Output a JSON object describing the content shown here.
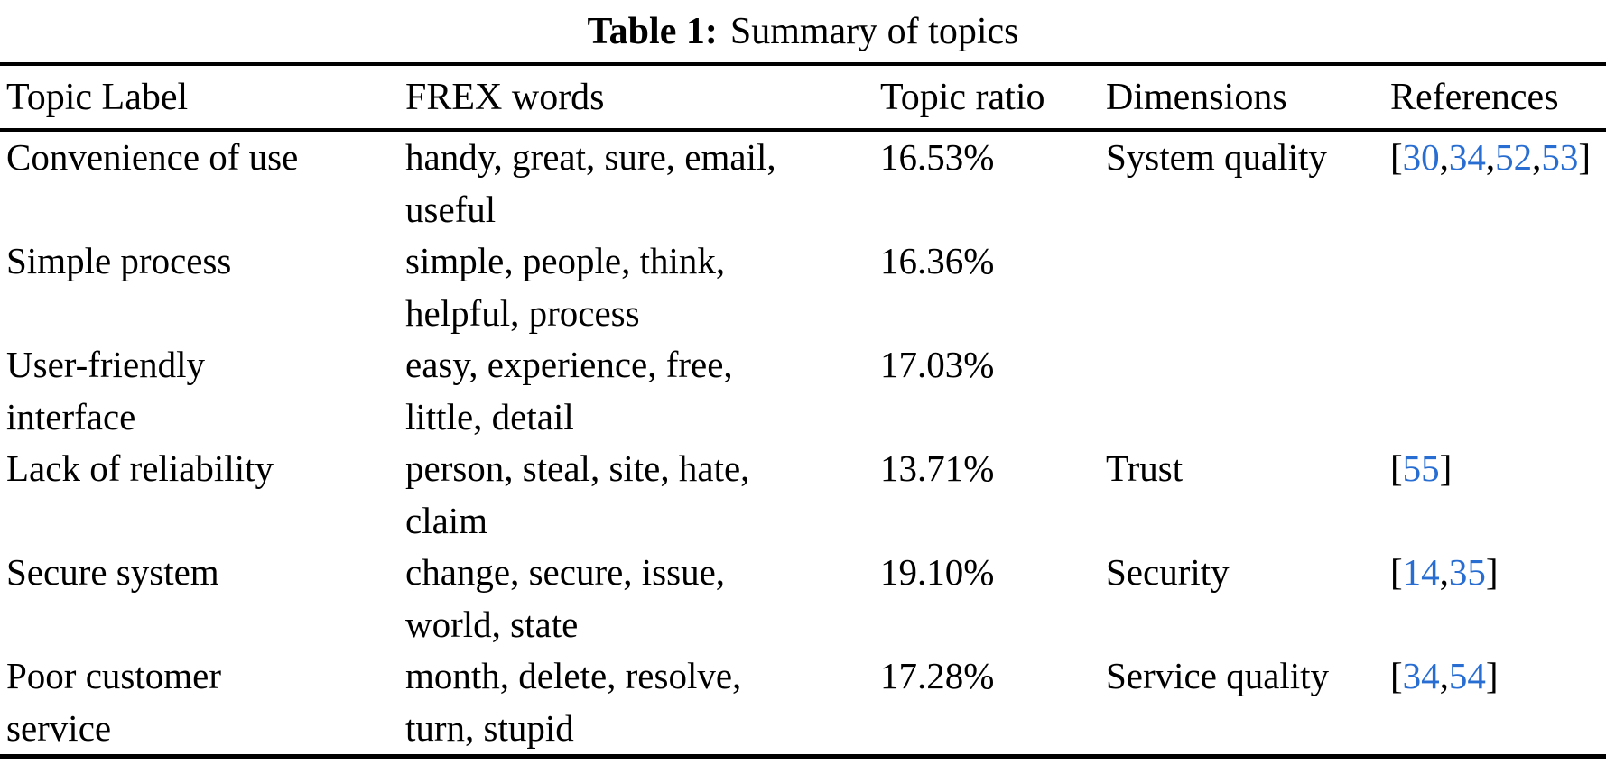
{
  "title": {
    "label": "Table 1:",
    "caption": "Summary of topics"
  },
  "table": {
    "columns": [
      "Topic Label",
      "FREX words",
      "Topic ratio",
      "Dimensions",
      "References"
    ],
    "rows": [
      {
        "topic_label": "Convenience of use",
        "frex_words": "handy, great, sure, email,\nuseful",
        "topic_ratio": "16.53%",
        "dimensions": "System quality",
        "references": [
          30,
          34,
          52,
          53
        ]
      },
      {
        "topic_label": "Simple process",
        "frex_words": "simple, people, think,\nhelpful, process",
        "topic_ratio": "16.36%",
        "dimensions": "",
        "references": []
      },
      {
        "topic_label": "User-friendly\ninterface",
        "frex_words": "easy, experience, free,\nlittle, detail",
        "topic_ratio": "17.03%",
        "dimensions": "",
        "references": []
      },
      {
        "topic_label": "Lack of reliability",
        "frex_words": "person, steal, site, hate,\nclaim",
        "topic_ratio": "13.71%",
        "dimensions": "Trust",
        "references": [
          55
        ]
      },
      {
        "topic_label": "Secure system",
        "frex_words": "change, secure, issue,\nworld, state",
        "topic_ratio": "19.10%",
        "dimensions": "Security",
        "references": [
          14,
          35
        ]
      },
      {
        "topic_label": "Poor customer\nservice",
        "frex_words": "month, delete, resolve,\nturn, stupid",
        "topic_ratio": "17.28%",
        "dimensions": "Service quality",
        "references": [
          34,
          54
        ]
      }
    ]
  },
  "colors": {
    "text": "#000000",
    "background": "#ffffff",
    "reference_link": "#286ed2"
  }
}
